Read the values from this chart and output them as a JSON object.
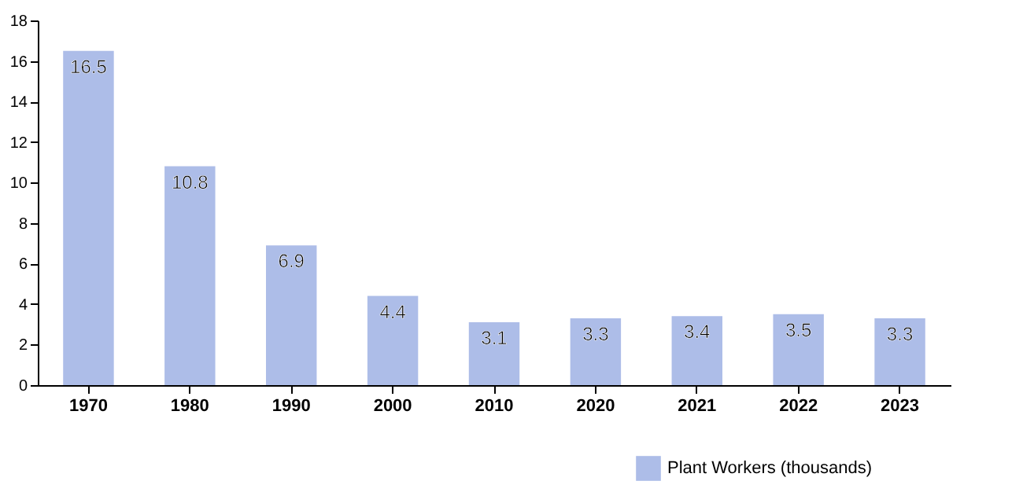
{
  "chart_data": {
    "type": "bar",
    "categories": [
      "1970",
      "1980",
      "1990",
      "2000",
      "2010",
      "2020",
      "2021",
      "2022",
      "2023"
    ],
    "series": [
      {
        "name": "Plant Workers  (thousands)",
        "color": "#adbde8",
        "values": [
          16.5,
          10.8,
          6.9,
          4.4,
          3.1,
          3.3,
          3.4,
          3.5,
          3.3
        ]
      }
    ],
    "ylim": [
      0,
      18
    ],
    "yticks": [
      0,
      2,
      4,
      6,
      8,
      10,
      12,
      14,
      16,
      18
    ],
    "data_labels": true,
    "grid": false,
    "legend": "bottom right"
  }
}
